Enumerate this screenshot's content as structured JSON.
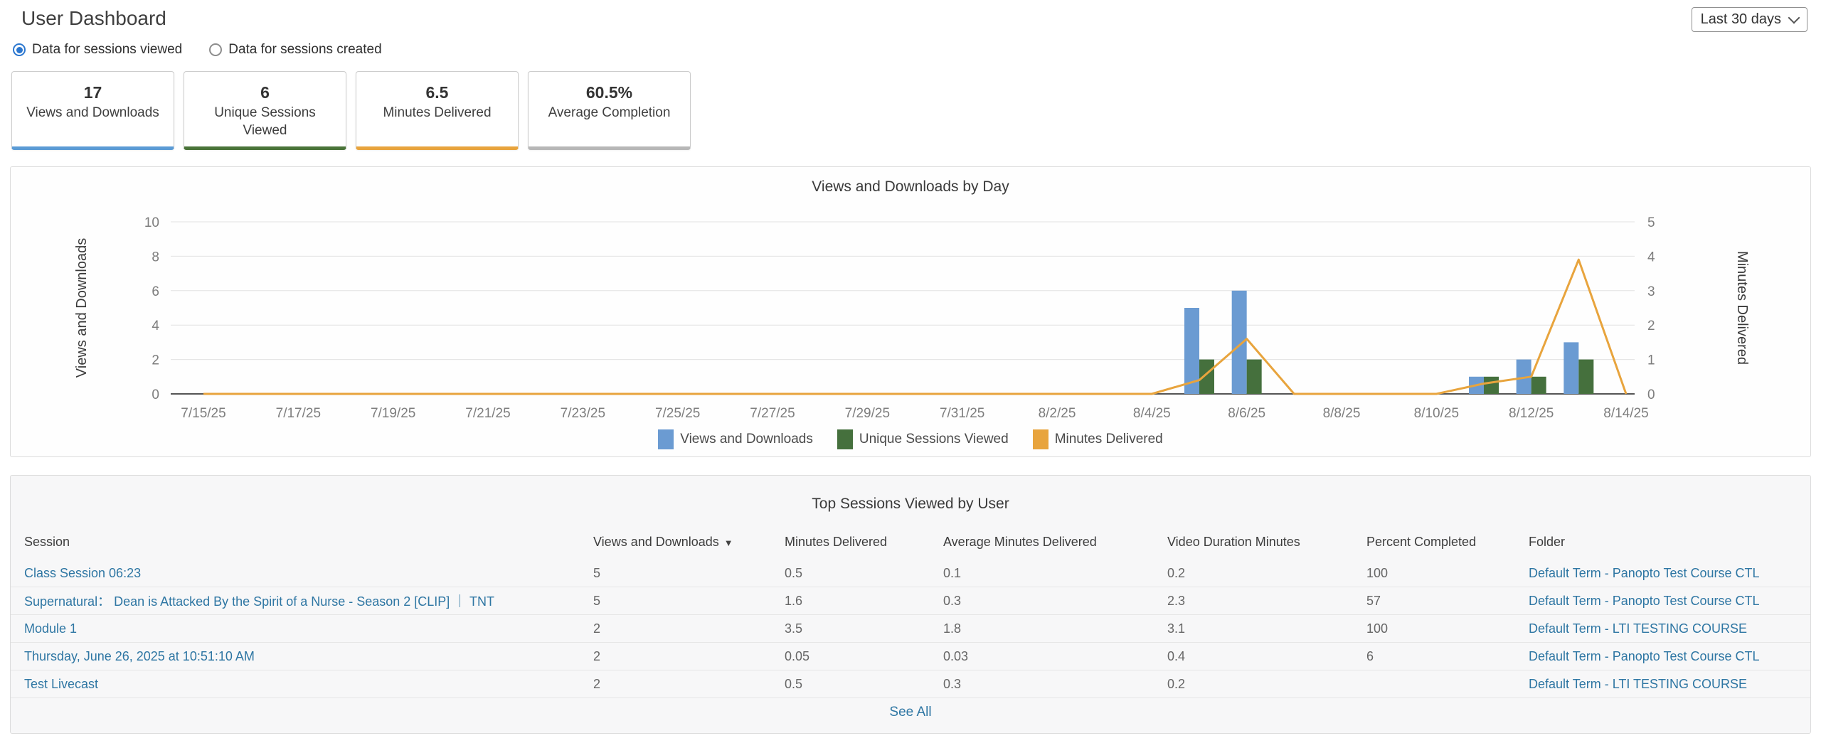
{
  "page": {
    "title": "User Dashboard"
  },
  "controls": {
    "date_range": "Last 30 days",
    "radio_selected": "Data for sessions viewed",
    "radio_unselected": "Data for sessions created"
  },
  "stats": [
    {
      "value": "17",
      "label": "Views and Downloads",
      "accent": "#5b9bd5"
    },
    {
      "value": "6",
      "label": "Unique Sessions Viewed",
      "accent": "#4a7439"
    },
    {
      "value": "6.5",
      "label": "Minutes Delivered",
      "accent": "#e8a43d"
    },
    {
      "value": "60.5%",
      "label": "Average Completion",
      "accent": "#b7b7b7"
    }
  ],
  "chart_data": {
    "type": "combo-bar-line",
    "title": "Views and Downloads by Day",
    "days": [
      "7/15/25",
      "7/16/25",
      "7/17/25",
      "7/18/25",
      "7/19/25",
      "7/20/25",
      "7/21/25",
      "7/22/25",
      "7/23/25",
      "7/24/25",
      "7/25/25",
      "7/26/25",
      "7/27/25",
      "7/28/25",
      "7/29/25",
      "7/30/25",
      "7/31/25",
      "8/1/25",
      "8/2/25",
      "8/3/25",
      "8/4/25",
      "8/5/25",
      "8/6/25",
      "8/7/25",
      "8/8/25",
      "8/9/25",
      "8/10/25",
      "8/11/25",
      "8/12/25",
      "8/13/25",
      "8/14/25"
    ],
    "x_label_every": 2,
    "series": [
      {
        "name": "Views and Downloads",
        "type": "bar",
        "axis": "left",
        "color": "#6b9bd2",
        "values": [
          0,
          0,
          0,
          0,
          0,
          0,
          0,
          0,
          0,
          0,
          0,
          0,
          0,
          0,
          0,
          0,
          0,
          0,
          0,
          0,
          0,
          5,
          6,
          0,
          0,
          0,
          0,
          1,
          2,
          3,
          0
        ]
      },
      {
        "name": "Unique Sessions Viewed",
        "type": "bar",
        "axis": "left",
        "color": "#45703d",
        "values": [
          0,
          0,
          0,
          0,
          0,
          0,
          0,
          0,
          0,
          0,
          0,
          0,
          0,
          0,
          0,
          0,
          0,
          0,
          0,
          0,
          0,
          2,
          2,
          0,
          0,
          0,
          0,
          1,
          1,
          2,
          0
        ]
      },
      {
        "name": "Minutes Delivered",
        "type": "line",
        "axis": "right",
        "color": "#e8a43d",
        "values": [
          0,
          0,
          0,
          0,
          0,
          0,
          0,
          0,
          0,
          0,
          0,
          0,
          0,
          0,
          0,
          0,
          0,
          0,
          0,
          0,
          0,
          0.4,
          1.6,
          0,
          0,
          0,
          0,
          0.3,
          0.5,
          3.9,
          0
        ]
      }
    ],
    "left_axis": {
      "label": "Views and Downloads",
      "min": 0,
      "max": 10,
      "ticks": [
        0,
        2,
        4,
        6,
        8,
        10
      ]
    },
    "right_axis": {
      "label": "Minutes Delivered",
      "min": 0,
      "max": 5,
      "ticks": [
        0,
        1,
        2,
        3,
        4,
        5
      ]
    },
    "grid": true,
    "legend_position": "bottom"
  },
  "table": {
    "title": "Top Sessions Viewed by User",
    "columns": [
      {
        "label": "Session"
      },
      {
        "label": "Views and Downloads",
        "sorted": "desc"
      },
      {
        "label": "Minutes Delivered"
      },
      {
        "label": "Average Minutes Delivered"
      },
      {
        "label": "Video Duration Minutes"
      },
      {
        "label": "Percent Completed"
      },
      {
        "label": "Folder"
      }
    ],
    "rows": [
      {
        "session": "Class Session 06:23",
        "views": "5",
        "minutes": "0.5",
        "avg_minutes": "0.1",
        "duration": "0.2",
        "percent": "100",
        "folder": "Default Term - Panopto Test Course CTL"
      },
      {
        "session": "Supernatural： Dean is Attacked By the Spirit of a Nurse - Season 2 [CLIP] ｜ TNT",
        "views": "5",
        "minutes": "1.6",
        "avg_minutes": "0.3",
        "duration": "2.3",
        "percent": "57",
        "folder": "Default Term - Panopto Test Course CTL"
      },
      {
        "session": "Module 1",
        "views": "2",
        "minutes": "3.5",
        "avg_minutes": "1.8",
        "duration": "3.1",
        "percent": "100",
        "folder": "Default Term - LTI TESTING COURSE"
      },
      {
        "session": "Thursday, June 26, 2025 at 10:51:10 AM",
        "views": "2",
        "minutes": "0.05",
        "avg_minutes": "0.03",
        "duration": "0.4",
        "percent": "6",
        "folder": "Default Term - Panopto Test Course CTL"
      },
      {
        "session": "Test Livecast",
        "views": "2",
        "minutes": "0.5",
        "avg_minutes": "0.3",
        "duration": "0.2",
        "percent": "",
        "folder": "Default Term - LTI TESTING COURSE"
      }
    ],
    "see_all": "See All"
  }
}
